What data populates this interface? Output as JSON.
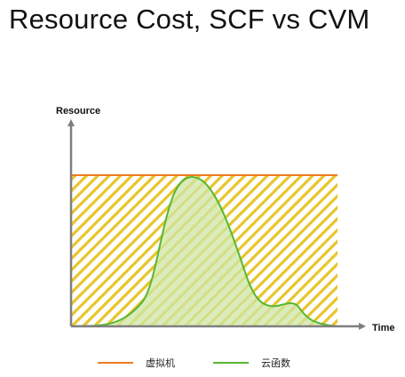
{
  "title": "Resource Cost, SCF vs CVM",
  "axes": {
    "y_label": "Resource",
    "x_label": "Time"
  },
  "legend": [
    {
      "label": "虚拟机",
      "color": "#f07c1f"
    },
    {
      "label": "云函数",
      "color": "#56b832"
    }
  ],
  "colors": {
    "axis": "#7f7f7f",
    "hatch": "#e8c52a",
    "scf_fill": "#cfe6a6",
    "cvm_line": "#f07c1f",
    "scf_line": "#56b832"
  }
}
